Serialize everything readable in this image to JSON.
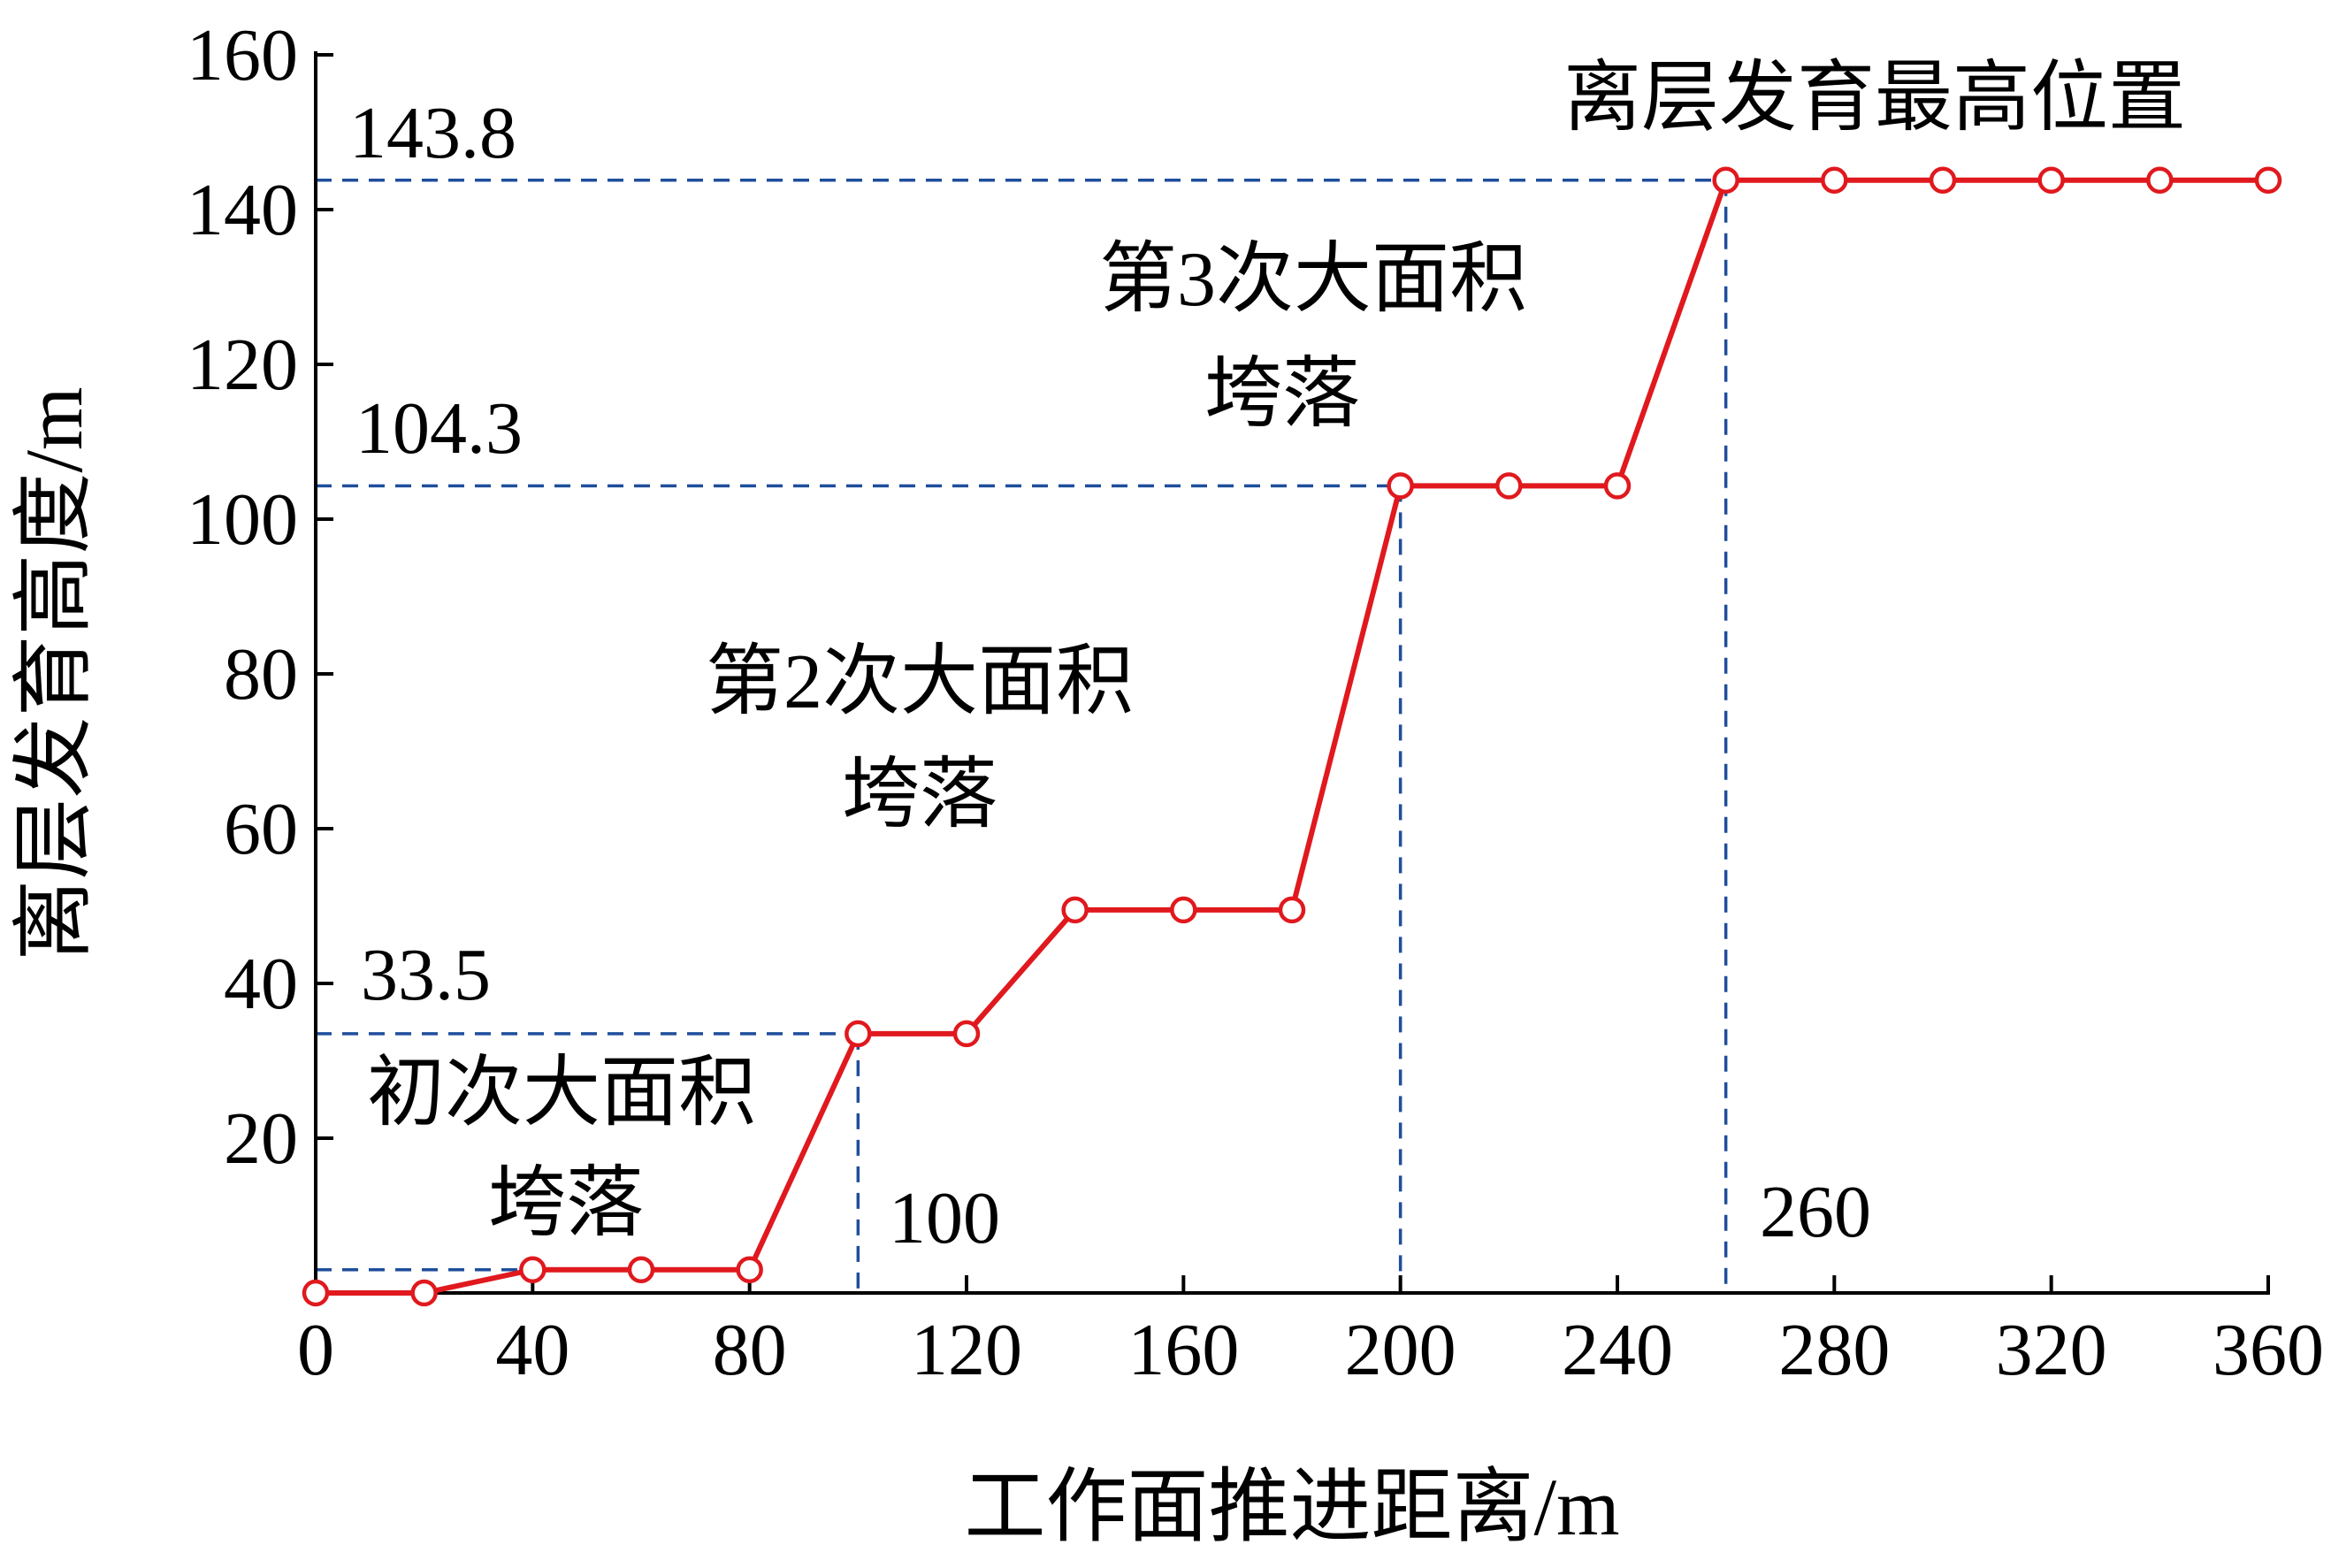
{
  "chart_data": {
    "type": "line",
    "xlabel": "工作面推进距离/m",
    "ylabel": "离层发育高度/m",
    "xlim": [
      0,
      360
    ],
    "ylim": [
      0,
      160
    ],
    "xticks": [
      0,
      40,
      80,
      120,
      160,
      200,
      240,
      280,
      320,
      360
    ],
    "yticks": [
      20,
      40,
      60,
      80,
      100,
      120,
      140,
      160
    ],
    "grid": false,
    "series": [
      {
        "color": "#e0191e",
        "marker": "open-circle",
        "x": [
          0,
          20,
          40,
          60,
          80,
          100,
          120,
          140,
          160,
          180,
          200,
          220,
          240,
          260,
          280,
          300,
          320,
          340,
          360
        ],
        "y": [
          0,
          0,
          3,
          3,
          3,
          33.5,
          33.5,
          49.5,
          49.5,
          49.5,
          104.3,
          104.3,
          104.3,
          143.8,
          143.8,
          143.8,
          143.8,
          143.8,
          143.8
        ]
      }
    ],
    "reference_lines": {
      "color": "#1f4e9c",
      "horizontal": [
        {
          "y": 143.8,
          "to_x": 260,
          "label": "143.8"
        },
        {
          "y": 104.3,
          "to_x": 200,
          "label": "104.3"
        },
        {
          "y": 33.5,
          "to_x": 100,
          "label": "33.5"
        },
        {
          "y": 3,
          "to_x": 40,
          "label": ""
        }
      ],
      "vertical": [
        {
          "x": 100,
          "to_y": 33.5,
          "label": "100"
        },
        {
          "x": 200,
          "to_y": 104.3,
          "label": ""
        },
        {
          "x": 260,
          "to_y": 143.8,
          "label": "260"
        }
      ]
    },
    "annotations": [
      {
        "lines": [
          "初次大面积",
          "垮落"
        ]
      },
      {
        "lines": [
          "第2次大面积",
          "垮落"
        ]
      },
      {
        "lines": [
          "第3次大面积",
          "垮落"
        ]
      },
      {
        "lines": [
          "离层发育最高位置"
        ]
      }
    ]
  }
}
